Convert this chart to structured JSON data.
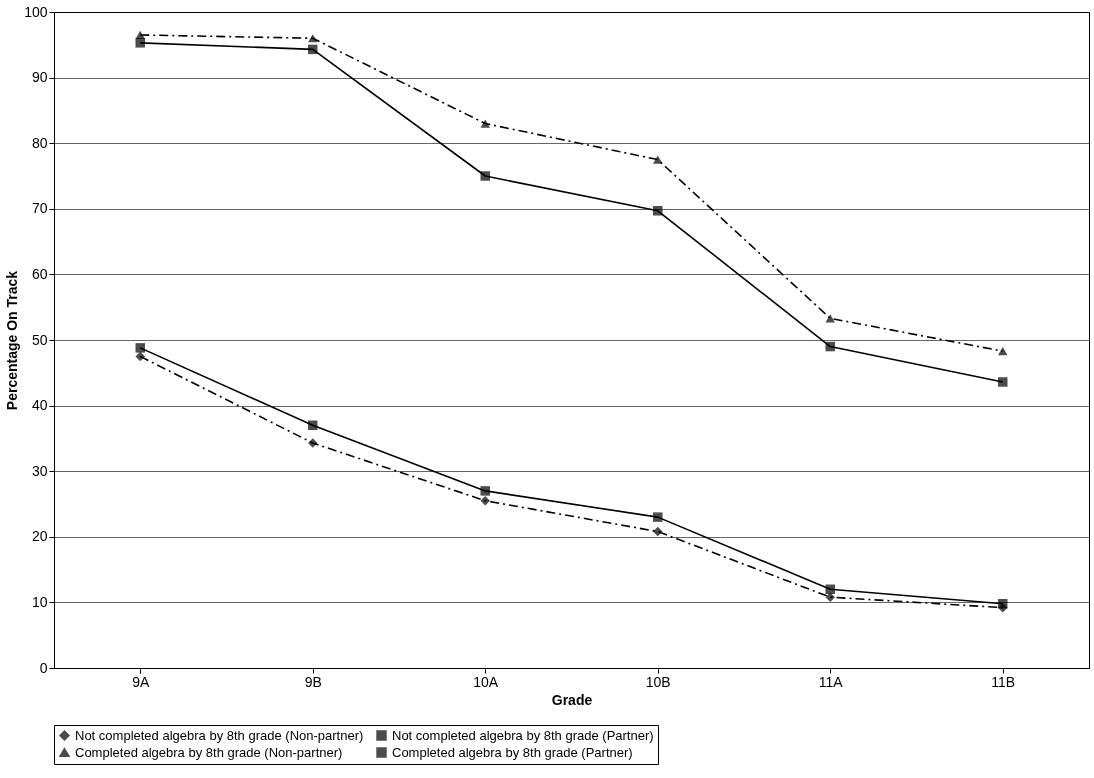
{
  "chart_data": {
    "type": "line",
    "xlabel": "Grade",
    "ylabel": "Percentage On Track",
    "categories": [
      "9A",
      "9B",
      "10A",
      "10B",
      "11A",
      "11B"
    ],
    "ylim": [
      0,
      100
    ],
    "yticks": [
      0,
      10,
      20,
      30,
      40,
      50,
      60,
      70,
      80,
      90,
      100
    ],
    "grid": "y",
    "legend": "bottom",
    "series": [
      {
        "name": "Not completed algebra by 8th grade (Non-partner)",
        "color": "#000000",
        "marker": "diamond",
        "line_style": "dashed",
        "values": [
          47.5,
          34.3,
          25.5,
          20.8,
          10.8,
          9.2
        ]
      },
      {
        "name": "Not completed algebra by 8th grade (Partner)",
        "color": "#000000",
        "marker": "square",
        "line_style": "solid",
        "values": [
          48.8,
          37.0,
          27.0,
          23.0,
          12.0,
          9.8
        ]
      },
      {
        "name": "Completed algebra by 8th grade (Non-partner)",
        "color": "#000000",
        "marker": "triangle",
        "line_style": "dashed",
        "values": [
          96.5,
          96.0,
          83.0,
          77.5,
          53.3,
          48.3
        ]
      },
      {
        "name": "Completed algebra by 8th grade (Partner)",
        "color": "#000000",
        "marker": "square",
        "line_style": "solid",
        "values": [
          95.3,
          94.3,
          75.0,
          69.7,
          49.0,
          43.6
        ]
      }
    ]
  }
}
